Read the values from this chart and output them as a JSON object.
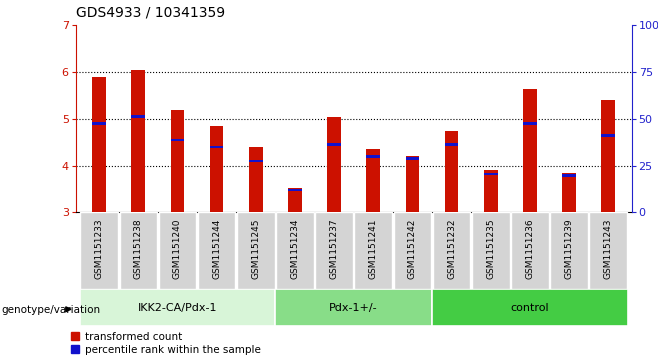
{
  "title": "GDS4933 / 10341359",
  "samples": [
    "GSM1151233",
    "GSM1151238",
    "GSM1151240",
    "GSM1151244",
    "GSM1151245",
    "GSM1151234",
    "GSM1151237",
    "GSM1151241",
    "GSM1151242",
    "GSM1151232",
    "GSM1151235",
    "GSM1151236",
    "GSM1151239",
    "GSM1151243"
  ],
  "red_values": [
    5.9,
    6.05,
    5.2,
    4.85,
    4.4,
    3.52,
    5.05,
    4.35,
    4.2,
    4.75,
    3.9,
    5.65,
    3.85,
    5.4
  ],
  "blue_values": [
    4.9,
    5.05,
    4.55,
    4.4,
    4.1,
    3.48,
    4.45,
    4.2,
    4.15,
    4.45,
    3.82,
    4.9,
    3.78,
    4.65
  ],
  "groups": [
    {
      "label": "IKK2-CA/Pdx-1",
      "start": 0,
      "end": 5,
      "color": "#d8f5d8"
    },
    {
      "label": "Pdx-1+/-",
      "start": 5,
      "end": 9,
      "color": "#88dd88"
    },
    {
      "label": "control",
      "start": 9,
      "end": 14,
      "color": "#44cc44"
    }
  ],
  "ylim_left": [
    3,
    7
  ],
  "ylim_right": [
    0,
    100
  ],
  "yticks_left": [
    3,
    4,
    5,
    6,
    7
  ],
  "yticks_right": [
    0,
    25,
    50,
    75,
    100
  ],
  "bar_color_red": "#cc1100",
  "bar_color_blue": "#1111cc",
  "left_axis_color": "#cc1100",
  "right_axis_color": "#2222cc",
  "bar_width": 0.35,
  "genotype_label": "genotype/variation"
}
